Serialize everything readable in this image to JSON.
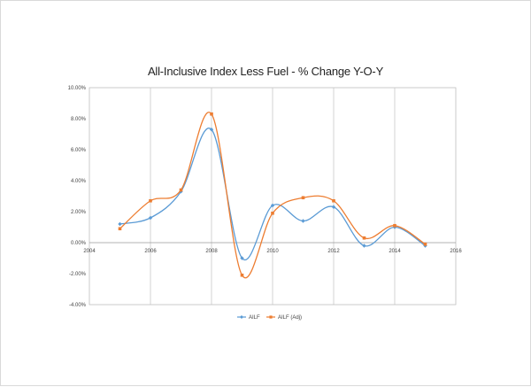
{
  "chart_data": {
    "type": "line",
    "title": "All-Inclusive Index Less Fuel - % Change Y-O-Y",
    "xlabel": "",
    "ylabel": "",
    "xlim": [
      2004,
      2016
    ],
    "ylim": [
      -4,
      10
    ],
    "x_ticks": [
      "2004",
      "2006",
      "2008",
      "2010",
      "2012",
      "2014",
      "2016"
    ],
    "x_tick_values": [
      2004,
      2006,
      2008,
      2010,
      2012,
      2014,
      2016
    ],
    "y_ticks": [
      "10.00%",
      "8.00%",
      "6.00%",
      "4.00%",
      "2.00%",
      "0.00%",
      "-2.00%",
      "-4.00%"
    ],
    "y_tick_values": [
      10,
      8,
      6,
      4,
      2,
      0,
      -2,
      -4
    ],
    "grid": "vertical",
    "legend_position": "bottom",
    "x": [
      2005,
      2006,
      2007,
      2008,
      2009,
      2010,
      2011,
      2012,
      2013,
      2014,
      2015
    ],
    "series": [
      {
        "name": "AILF",
        "color": "#5b9bd5",
        "values": [
          1.2,
          1.6,
          3.3,
          7.3,
          -1.0,
          2.4,
          1.4,
          2.3,
          -0.2,
          1.0,
          -0.2
        ]
      },
      {
        "name": "AILF (Adj)",
        "color": "#ed7d31",
        "values": [
          0.9,
          2.7,
          3.4,
          8.3,
          -2.1,
          1.9,
          2.9,
          2.7,
          0.3,
          1.1,
          -0.1
        ]
      }
    ]
  }
}
